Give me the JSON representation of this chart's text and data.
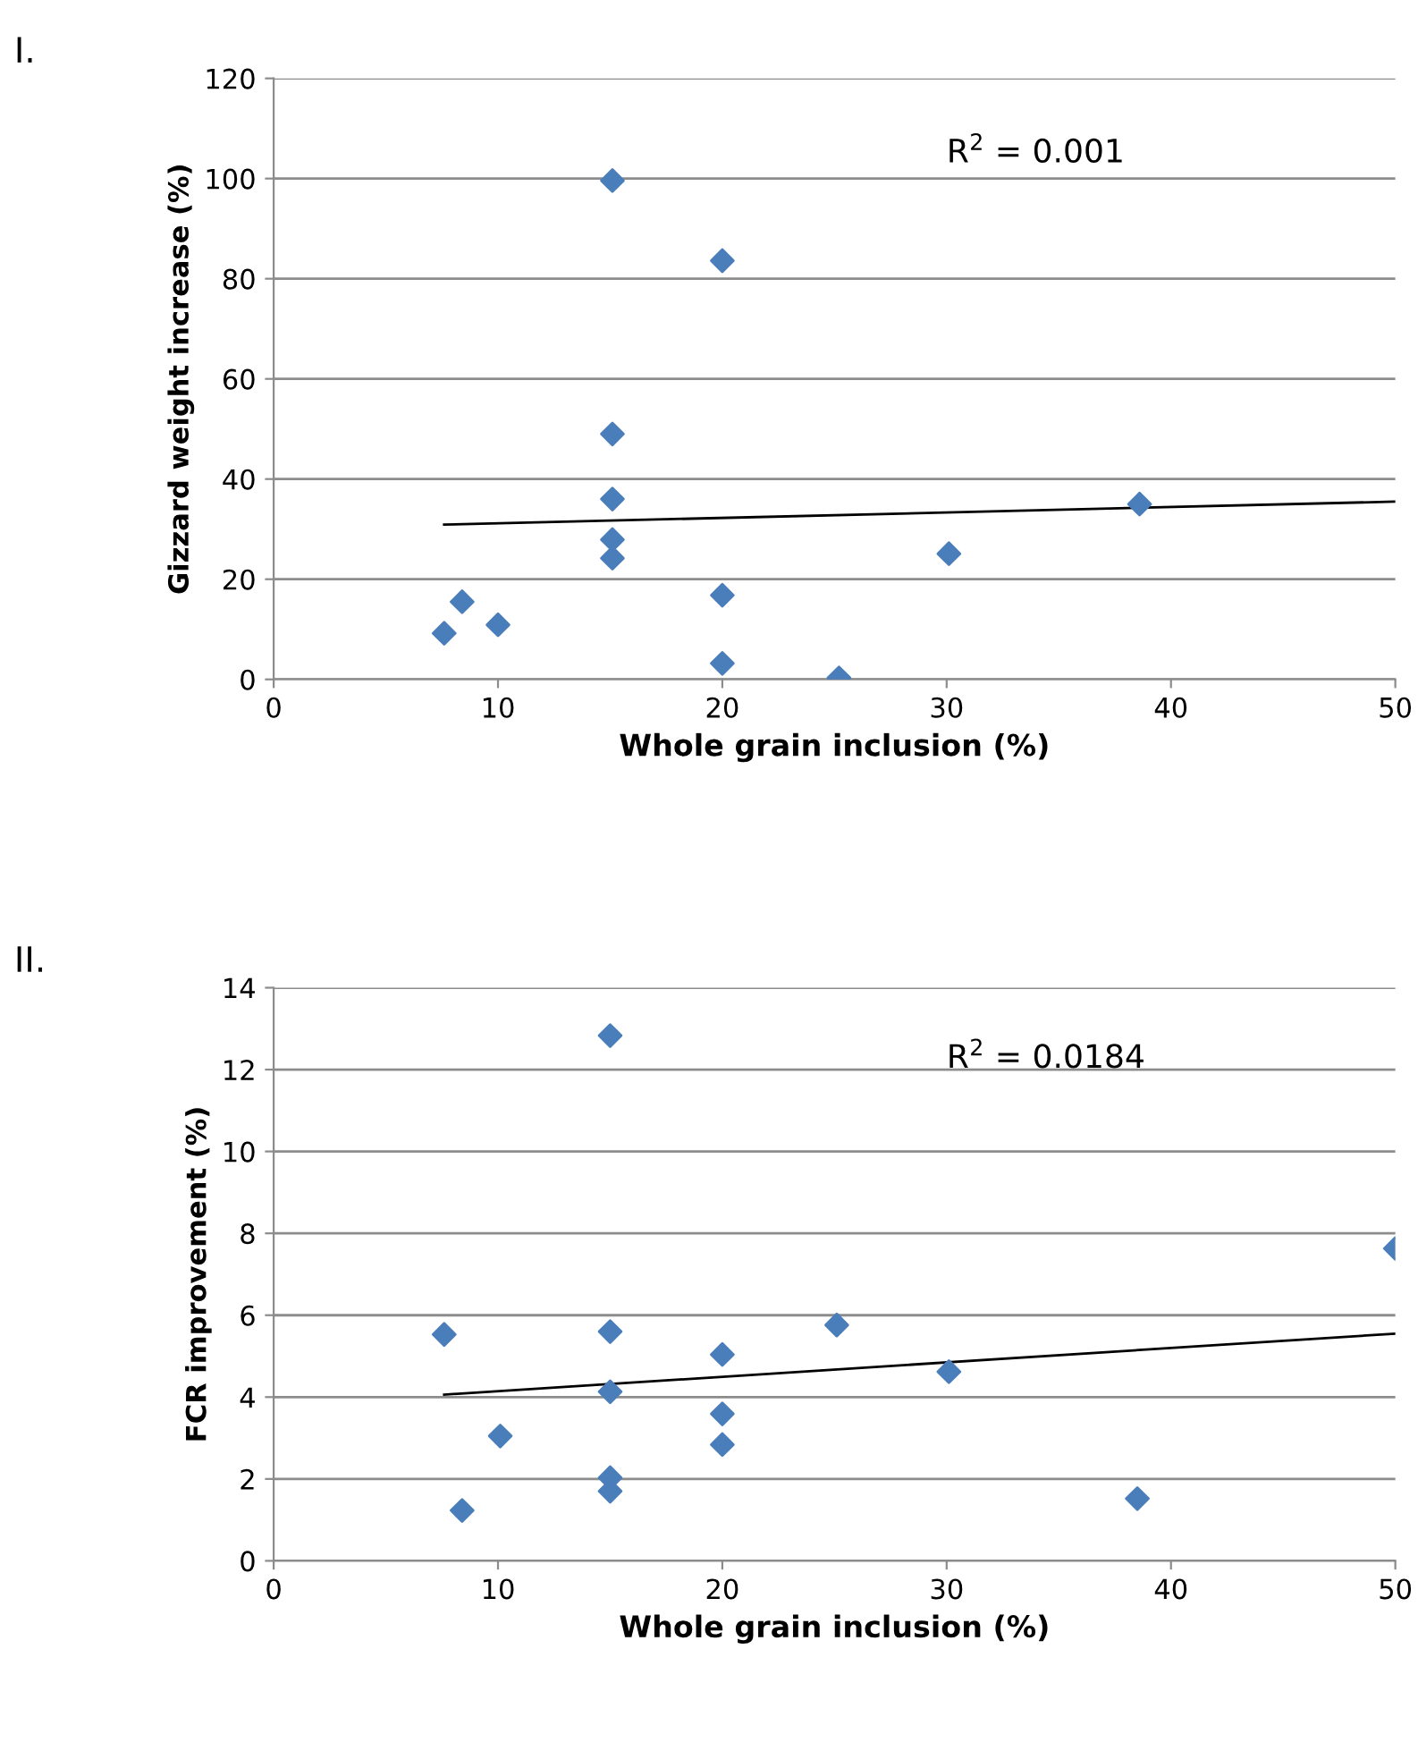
{
  "chart_data": [
    {
      "type": "scatter",
      "xlabel": "Whole grain inclusion (%)",
      "ylabel": "Gizzard weight increase (%)",
      "annotations": [
        "I.",
        "R$^{2}$ = 0.001"
      ],
      "xlim": [
        0,
        50
      ],
      "xticks": [
        0,
        10,
        20,
        30,
        40,
        50
      ],
      "ylim": [
        0,
        120
      ],
      "yticks": [
        0,
        20,
        40,
        60,
        80,
        100,
        120
      ],
      "grid": "y",
      "marker": "diamond",
      "series": [
        {
          "color": "#4a7ebb",
          "x": [
            7.6,
            8.4,
            10.0,
            15.1,
            15.1,
            15.1,
            15.1,
            15.1,
            20.0,
            20.0,
            20.0,
            25.2,
            30.1,
            38.6
          ],
          "values": [
            9.2,
            15.5,
            10.9,
            99.6,
            49.0,
            36.0,
            27.9,
            24.2,
            83.6,
            16.8,
            3.2,
            0.3,
            25.1,
            35.0
          ]
        },
        {
          "type": "line",
          "color": "#000000",
          "marker": "none",
          "x": [
            7.6,
            50
          ],
          "values": [
            30.9,
            35.5
          ]
        }
      ]
    },
    {
      "type": "scatter",
      "xlabel": "Whole grain inclusion (%)",
      "ylabel": "FCR improvement (%)",
      "annotations": [
        "II.",
        "R$^{2}$ = 0.0184"
      ],
      "xlim": [
        0,
        50
      ],
      "xticks": [
        0,
        10,
        20,
        30,
        40,
        50
      ],
      "ylim": [
        0,
        14
      ],
      "yticks": [
        0,
        2,
        4,
        6,
        8,
        10,
        12,
        14
      ],
      "grid": "y",
      "marker": "diamond",
      "series": [
        {
          "color": "#4a7ebb",
          "x": [
            7.6,
            8.4,
            10.1,
            15.0,
            15.0,
            15.0,
            15.0,
            15.0,
            20.0,
            20.0,
            20.0,
            25.1,
            30.1,
            38.5,
            50.0
          ],
          "values": [
            5.53,
            1.23,
            3.05,
            12.83,
            5.6,
            4.13,
            2.03,
            1.7,
            5.04,
            3.59,
            2.84,
            5.76,
            4.62,
            1.52,
            7.63
          ]
        },
        {
          "type": "line",
          "color": "#000000",
          "marker": "none",
          "x": [
            7.6,
            50
          ],
          "values": [
            4.06,
            5.55
          ]
        }
      ]
    }
  ]
}
